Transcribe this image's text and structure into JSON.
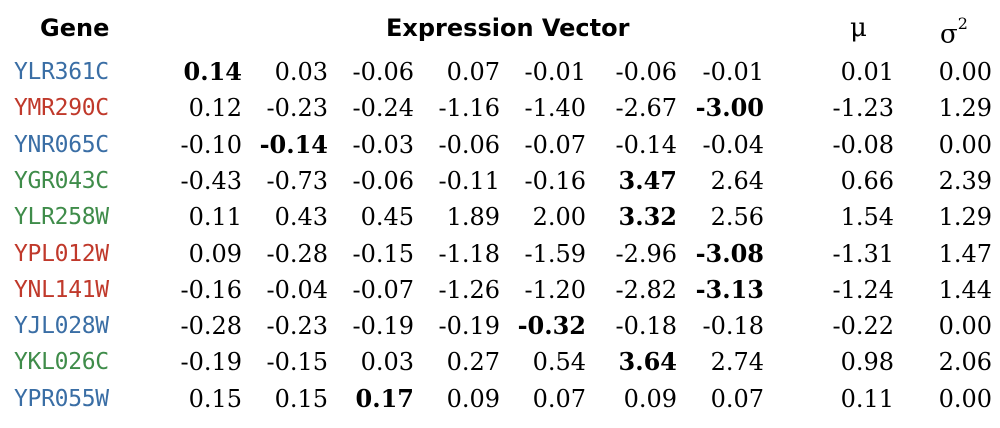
{
  "header": {
    "gene": "Gene",
    "expression_vector": "Expression Vector",
    "mu": "μ",
    "sigma": "σ",
    "sigma_exp": "2"
  },
  "colors": {
    "blue": "#3a6ea5",
    "red": "#c0392b",
    "green": "#3f8c4a"
  },
  "rows": [
    {
      "gene": "YLR361C",
      "color": "#3a6ea5",
      "values": [
        "0.14",
        "0.03",
        "-0.06",
        "0.07",
        "-0.01",
        "-0.06",
        "-0.01"
      ],
      "bold": [
        0
      ],
      "mu": "0.01",
      "sigma2": "0.00"
    },
    {
      "gene": "YMR290C",
      "color": "#c0392b",
      "values": [
        "0.12",
        "-0.23",
        "-0.24",
        "-1.16",
        "-1.40",
        "-2.67",
        "-3.00"
      ],
      "bold": [
        6
      ],
      "mu": "-1.23",
      "sigma2": "1.29"
    },
    {
      "gene": "YNR065C",
      "color": "#3a6ea5",
      "values": [
        "-0.10",
        "-0.14",
        "-0.03",
        "-0.06",
        "-0.07",
        "-0.14",
        "-0.04"
      ],
      "bold": [
        1
      ],
      "mu": "-0.08",
      "sigma2": "0.00"
    },
    {
      "gene": "YGR043C",
      "color": "#3f8c4a",
      "values": [
        "-0.43",
        "-0.73",
        "-0.06",
        "-0.11",
        "-0.16",
        "3.47",
        "2.64"
      ],
      "bold": [
        5
      ],
      "mu": "0.66",
      "sigma2": "2.39"
    },
    {
      "gene": "YLR258W",
      "color": "#3f8c4a",
      "values": [
        "0.11",
        "0.43",
        "0.45",
        "1.89",
        "2.00",
        "3.32",
        "2.56"
      ],
      "bold": [
        5
      ],
      "mu": "1.54",
      "sigma2": "1.29"
    },
    {
      "gene": "YPL012W",
      "color": "#c0392b",
      "values": [
        "0.09",
        "-0.28",
        "-0.15",
        "-1.18",
        "-1.59",
        "-2.96",
        "-3.08"
      ],
      "bold": [
        6
      ],
      "mu": "-1.31",
      "sigma2": "1.47"
    },
    {
      "gene": "YNL141W",
      "color": "#c0392b",
      "values": [
        "-0.16",
        "-0.04",
        "-0.07",
        "-1.26",
        "-1.20",
        "-2.82",
        "-3.13"
      ],
      "bold": [
        6
      ],
      "mu": "-1.24",
      "sigma2": "1.44"
    },
    {
      "gene": "YJL028W",
      "color": "#3a6ea5",
      "values": [
        "-0.28",
        "-0.23",
        "-0.19",
        "-0.19",
        "-0.32",
        "-0.18",
        "-0.18"
      ],
      "bold": [
        4
      ],
      "mu": "-0.22",
      "sigma2": "0.00"
    },
    {
      "gene": "YKL026C",
      "color": "#3f8c4a",
      "values": [
        "-0.19",
        "-0.15",
        "0.03",
        "0.27",
        "0.54",
        "3.64",
        "2.74"
      ],
      "bold": [
        5
      ],
      "mu": "0.98",
      "sigma2": "2.06"
    },
    {
      "gene": "YPR055W",
      "color": "#3a6ea5",
      "values": [
        "0.15",
        "0.15",
        "0.17",
        "0.09",
        "0.07",
        "0.09",
        "0.07"
      ],
      "bold": [
        2
      ],
      "mu": "0.11",
      "sigma2": "0.00"
    }
  ]
}
